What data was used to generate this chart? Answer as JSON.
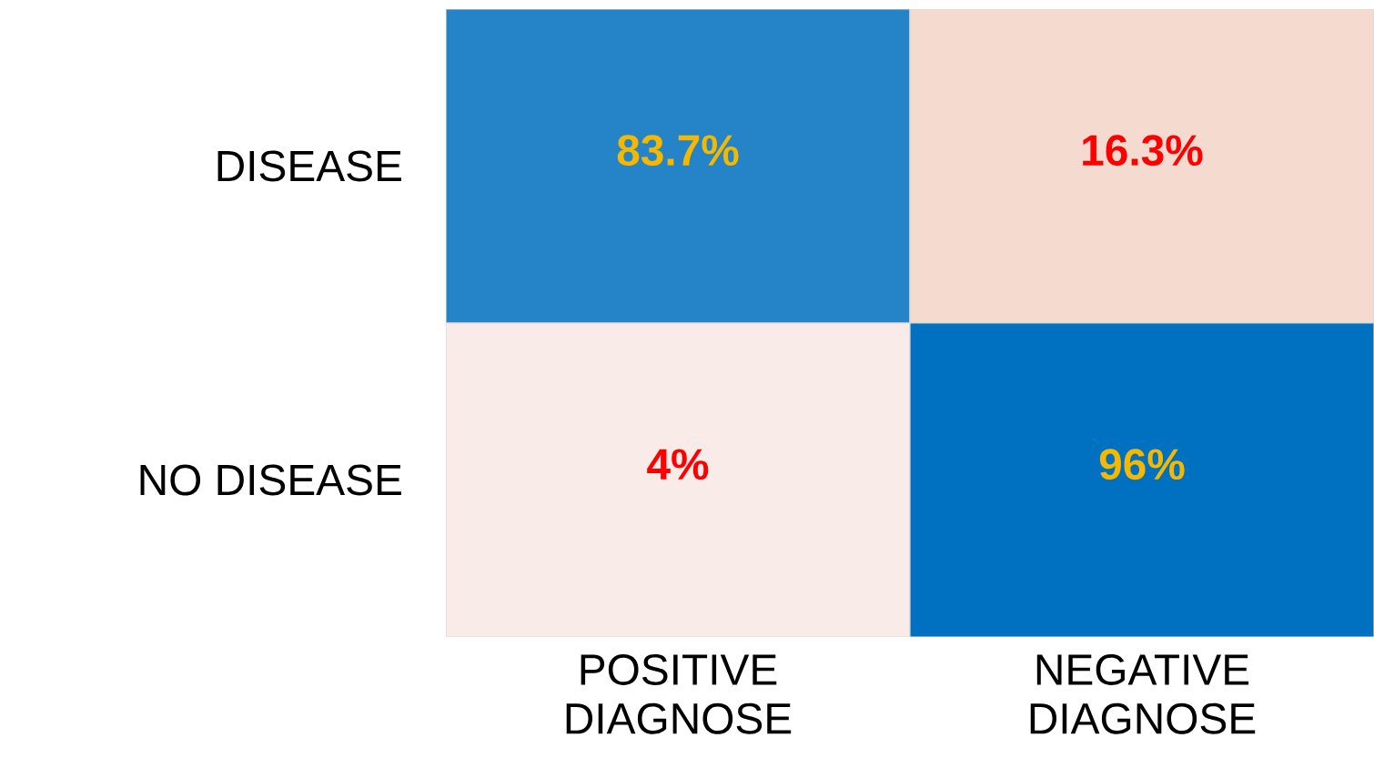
{
  "chart_data": {
    "type": "heatmap",
    "categories": [
      "POSITIVE DIAGNOSE",
      "NEGATIVE DIAGNOSE"
    ],
    "y_categories": [
      "DISEASE",
      "NO DISEASE"
    ],
    "cells": [
      [
        83.7,
        16.3
      ],
      [
        4,
        96
      ]
    ],
    "cell_labels": [
      [
        "83.7%",
        "16.3%"
      ],
      [
        "4%",
        "96%"
      ]
    ]
  }
}
